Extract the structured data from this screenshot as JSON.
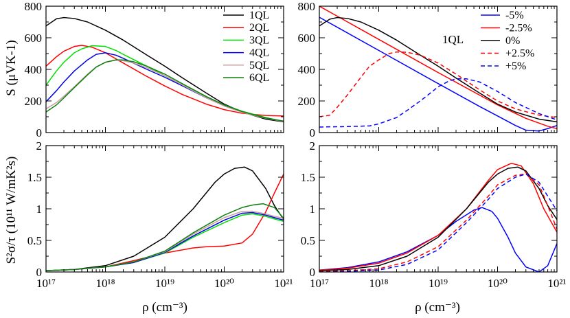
{
  "chart_data": [
    {
      "id": "tl",
      "type": "line",
      "xscale": "log",
      "xlim": [
        1e+17,
        1e+21
      ],
      "ylim": [
        0,
        800
      ],
      "yticks": [
        0,
        200,
        400,
        600,
        800
      ],
      "ytick_labels": [
        "0",
        "200",
        "400",
        "600",
        "800"
      ],
      "xticks": [
        1e+17,
        1e+18,
        1e+19,
        1e+20,
        1e+21
      ],
      "xtick_labels": [],
      "ylabel": "S (μVK-1)",
      "xlabel": "",
      "legend_position": "top-right",
      "series": [
        {
          "name": "1QL",
          "color": "#000000",
          "dash": "solid",
          "x": [
            1e+17,
            1.5e+17,
            2e+17,
            3e+17,
            5e+17,
            1e+18,
            2e+18,
            5e+18,
            1e+19,
            2e+19,
            5e+19,
            1e+20,
            2e+20,
            5e+20,
            1e+21
          ],
          "y": [
            675,
            720,
            728,
            722,
            700,
            648,
            585,
            490,
            420,
            345,
            250,
            180,
            130,
            85,
            68
          ]
        },
        {
          "name": "2QL",
          "color": "#ff0000",
          "dash": "solid",
          "x": [
            1e+17,
            1.5e+17,
            2e+17,
            3e+17,
            4e+17,
            6e+17,
            1e+18,
            2e+18,
            5e+18,
            1e+19,
            2e+19,
            5e+19,
            1e+20,
            2e+20,
            5e+20,
            1e+21
          ],
          "y": [
            420,
            480,
            515,
            545,
            552,
            540,
            505,
            440,
            355,
            295,
            240,
            180,
            145,
            122,
            108,
            105
          ]
        },
        {
          "name": "3QL",
          "color": "#00e000",
          "dash": "solid",
          "x": [
            1e+17,
            1.5e+17,
            2e+17,
            3e+17,
            4e+17,
            6e+17,
            1e+18,
            1.5e+18,
            2e+18,
            5e+18,
            1e+19,
            2e+19,
            5e+19,
            1e+20,
            2e+20,
            5e+20,
            1e+21
          ],
          "y": [
            300,
            390,
            445,
            505,
            530,
            550,
            545,
            520,
            495,
            420,
            360,
            300,
            225,
            175,
            135,
            95,
            70
          ]
        },
        {
          "name": "4QL",
          "color": "#0000e0",
          "dash": "solid",
          "x": [
            1e+17,
            1.5e+17,
            2e+17,
            3e+17,
            5e+17,
            7e+17,
            1e+18,
            1.5e+18,
            2e+18,
            5e+18,
            1e+19,
            2e+19,
            5e+19,
            1e+20,
            2e+20,
            5e+20,
            1e+21
          ],
          "y": [
            195,
            265,
            320,
            390,
            460,
            495,
            505,
            490,
            470,
            400,
            350,
            295,
            220,
            170,
            130,
            92,
            72
          ]
        },
        {
          "name": "5QL",
          "color": "#c8a0a0",
          "dash": "solid",
          "x": [
            1e+17,
            1.5e+17,
            2e+17,
            3e+17,
            5e+17,
            7e+17,
            1e+18,
            1.5e+18,
            2e+18,
            3e+18,
            5e+18,
            1e+19,
            2e+19,
            5e+19,
            1e+20,
            2e+20,
            5e+20,
            1e+21
          ],
          "y": [
            150,
            190,
            230,
            290,
            370,
            415,
            445,
            458,
            455,
            440,
            410,
            360,
            300,
            220,
            168,
            128,
            90,
            70
          ]
        },
        {
          "name": "6QL",
          "color": "#108010",
          "dash": "solid",
          "x": [
            1e+17,
            1.5e+17,
            2e+17,
            3e+17,
            5e+17,
            7e+17,
            1e+18,
            1.5e+18,
            2e+18,
            3e+18,
            5e+18,
            1e+19,
            2e+19,
            5e+19,
            1e+20,
            2e+20,
            5e+20,
            1e+21
          ],
          "y": [
            130,
            175,
            220,
            285,
            365,
            415,
            445,
            460,
            460,
            448,
            420,
            370,
            308,
            228,
            175,
            133,
            92,
            72
          ]
        }
      ]
    },
    {
      "id": "tr",
      "type": "line",
      "xscale": "log",
      "xlim": [
        1e+17,
        1e+21
      ],
      "ylim": [
        0,
        800
      ],
      "yticks": [
        0,
        200,
        400,
        600,
        800
      ],
      "ytick_labels": [
        "0",
        "200",
        "400",
        "600",
        "800"
      ],
      "xticks": [
        1e+17,
        1e+18,
        1e+19,
        1e+20,
        1e+21
      ],
      "xtick_labels": [],
      "ylabel": "",
      "xlabel": "",
      "annotation": "1QL",
      "legend_position": "top-right",
      "series": [
        {
          "name": "-5%",
          "color": "#0000ff",
          "dash": "solid",
          "x": [
            1e+17,
            1e+18,
            1e+19,
            5e+19,
            1e+20,
            2e+20,
            3e+20,
            5e+20,
            7e+20,
            1e+21
          ],
          "y": [
            730,
            520,
            310,
            165,
            105,
            45,
            15,
            10,
            25,
            45
          ]
        },
        {
          "name": "-2.5%",
          "color": "#ff0000",
          "dash": "solid",
          "x": [
            1e+17,
            1e+18,
            1e+19,
            1e+20,
            3e+20,
            7e+20,
            1e+21
          ],
          "y": [
            800,
            590,
            380,
            175,
            90,
            40,
            25
          ]
        },
        {
          "name": "0%",
          "color": "#000000",
          "dash": "solid",
          "x": [
            1e+17,
            1.5e+17,
            2e+17,
            3e+17,
            5e+17,
            1e+18,
            2e+18,
            5e+18,
            1e+19,
            2e+19,
            5e+19,
            1e+20,
            2e+20,
            5e+20,
            1e+21
          ],
          "y": [
            675,
            718,
            728,
            722,
            700,
            648,
            585,
            490,
            420,
            345,
            250,
            180,
            130,
            85,
            68
          ]
        },
        {
          "name": "+2.5%",
          "color": "#ff0000",
          "dash": "dashed",
          "x": [
            1e+17,
            1.5e+17,
            2e+17,
            3e+17,
            5e+17,
            7e+17,
            1e+18,
            1.5e+18,
            2e+18,
            3e+18,
            5e+18,
            1e+19,
            2e+19,
            5e+19,
            1e+20,
            2e+20,
            5e+20,
            1e+21
          ],
          "y": [
            100,
            110,
            160,
            240,
            350,
            420,
            460,
            500,
            510,
            508,
            490,
            440,
            370,
            270,
            200,
            150,
            110,
            95
          ]
        },
        {
          "name": "+5%",
          "color": "#0000ff",
          "dash": "dashed",
          "x": [
            1e+17,
            3e+17,
            7e+17,
            1e+18,
            2e+18,
            3e+18,
            5e+18,
            8e+18,
            1e+19,
            1.5e+19,
            2e+19,
            3e+19,
            5e+19,
            1e+20,
            2e+20,
            5e+20,
            1e+21
          ],
          "y": [
            35,
            38,
            42,
            55,
            95,
            140,
            200,
            260,
            290,
            325,
            340,
            340,
            320,
            260,
            190,
            120,
            80
          ]
        }
      ]
    },
    {
      "id": "bl",
      "type": "line",
      "xscale": "log",
      "xlim": [
        1e+17,
        1e+21
      ],
      "ylim": [
        0,
        2
      ],
      "yticks": [
        0,
        0.5,
        1,
        1.5,
        2
      ],
      "ytick_labels": [
        "0",
        "0.5",
        "1",
        "1.5",
        "2"
      ],
      "xticks": [
        1e+17,
        1e+18,
        1e+19,
        1e+20,
        1e+21
      ],
      "xtick_labels": [
        "10¹⁷",
        "10¹⁸",
        "10¹⁹",
        "10²⁰",
        "10²¹"
      ],
      "ylabel": "S²σ/τ (10¹¹ W/mK²s)",
      "xlabel": "ρ (cm⁻³)",
      "series": [
        {
          "name": "1QL",
          "color": "#000000",
          "dash": "solid",
          "x": [
            1e+17,
            3e+17,
            1e+18,
            3e+18,
            1e+19,
            3e+19,
            7e+19,
            1e+20,
            1.5e+20,
            2.2e+20,
            3e+20,
            5e+20,
            7e+20,
            1e+21
          ],
          "y": [
            0.02,
            0.04,
            0.1,
            0.25,
            0.55,
            1.0,
            1.42,
            1.55,
            1.64,
            1.66,
            1.6,
            1.32,
            1.05,
            0.83
          ]
        },
        {
          "name": "2QL",
          "color": "#ff0000",
          "dash": "solid",
          "x": [
            1e+17,
            3e+17,
            1e+18,
            3e+18,
            1e+19,
            3e+19,
            5e+19,
            1e+20,
            2e+20,
            3e+20,
            5e+20,
            7e+20,
            1e+21
          ],
          "y": [
            0.02,
            0.04,
            0.08,
            0.18,
            0.3,
            0.38,
            0.4,
            0.41,
            0.46,
            0.6,
            0.95,
            1.25,
            1.55
          ]
        },
        {
          "name": "3QL",
          "color": "#00e000",
          "dash": "solid",
          "x": [
            1e+17,
            3e+17,
            1e+18,
            3e+18,
            1e+19,
            3e+19,
            1e+20,
            2e+20,
            3e+20,
            5e+20,
            7e+20,
            1e+21
          ],
          "y": [
            0.02,
            0.04,
            0.08,
            0.15,
            0.3,
            0.55,
            0.78,
            0.9,
            0.92,
            0.88,
            0.84,
            0.8
          ]
        },
        {
          "name": "4QL",
          "color": "#0000e0",
          "dash": "solid",
          "x": [
            1e+17,
            3e+17,
            1e+18,
            3e+18,
            1e+19,
            3e+19,
            1e+20,
            2e+20,
            3e+20,
            5e+20,
            7e+20,
            1e+21
          ],
          "y": [
            0.02,
            0.04,
            0.08,
            0.15,
            0.31,
            0.57,
            0.82,
            0.93,
            0.94,
            0.9,
            0.86,
            0.82
          ]
        },
        {
          "name": "5QL",
          "color": "#c8a0a0",
          "dash": "solid",
          "x": [
            1e+17,
            3e+17,
            1e+18,
            3e+18,
            1e+19,
            3e+19,
            1e+20,
            2e+20,
            3e+20,
            5e+20,
            7e+20,
            1e+21
          ],
          "y": [
            0.02,
            0.04,
            0.08,
            0.16,
            0.32,
            0.6,
            0.86,
            0.96,
            0.96,
            0.92,
            0.88,
            0.85
          ]
        },
        {
          "name": "6QL",
          "color": "#108010",
          "dash": "solid",
          "x": [
            1e+17,
            3e+17,
            1e+18,
            3e+18,
            1e+19,
            3e+19,
            1e+20,
            2e+20,
            3e+20,
            4.5e+20,
            7e+20,
            1e+21
          ],
          "y": [
            0.02,
            0.04,
            0.08,
            0.16,
            0.33,
            0.62,
            0.9,
            1.02,
            1.06,
            1.08,
            1.02,
            0.85
          ]
        }
      ]
    },
    {
      "id": "br",
      "type": "line",
      "xscale": "log",
      "xlim": [
        1e+17,
        1e+21
      ],
      "ylim": [
        0,
        2
      ],
      "yticks": [
        0,
        0.5,
        1,
        1.5,
        2
      ],
      "ytick_labels": [
        "0",
        "0.5",
        "1",
        "1.5",
        "2"
      ],
      "xticks": [
        1e+17,
        1e+18,
        1e+19,
        1e+20,
        1e+21
      ],
      "xtick_labels": [
        "10¹⁷",
        "10¹⁸",
        "10¹⁹",
        "10²⁰",
        "10²¹"
      ],
      "ylabel": "",
      "xlabel": "ρ (cm⁻³)",
      "series": [
        {
          "name": "-5%",
          "color": "#0000ff",
          "dash": "solid",
          "x": [
            1e+17,
            3e+17,
            1e+18,
            3e+18,
            1e+19,
            2e+19,
            4e+19,
            5.5e+19,
            8e+19,
            1e+20,
            1.5e+20,
            2e+20,
            3e+20,
            5e+20,
            7e+20,
            1e+21
          ],
          "y": [
            0.03,
            0.07,
            0.16,
            0.32,
            0.58,
            0.8,
            0.98,
            1.02,
            0.96,
            0.85,
            0.55,
            0.3,
            0.08,
            0.0,
            0.1,
            0.45
          ]
        },
        {
          "name": "-2.5%",
          "color": "#ff0000",
          "dash": "solid",
          "x": [
            1e+17,
            3e+17,
            1e+18,
            3e+18,
            1e+19,
            3e+19,
            7e+19,
            1e+20,
            1.7e+20,
            2.5e+20,
            4e+20,
            6e+20,
            1e+21
          ],
          "y": [
            0.03,
            0.06,
            0.14,
            0.3,
            0.58,
            1.0,
            1.45,
            1.62,
            1.72,
            1.68,
            1.4,
            1.0,
            0.63
          ]
        },
        {
          "name": "0%",
          "color": "#000000",
          "dash": "solid",
          "x": [
            1e+17,
            3e+17,
            1e+18,
            3e+18,
            1e+19,
            3e+19,
            7e+19,
            1e+20,
            1.5e+20,
            2.2e+20,
            3e+20,
            5e+20,
            7e+20,
            1e+21
          ],
          "y": [
            0.02,
            0.04,
            0.1,
            0.25,
            0.55,
            1.0,
            1.42,
            1.55,
            1.64,
            1.66,
            1.6,
            1.32,
            1.05,
            0.83
          ]
        },
        {
          "name": "+2.5%",
          "color": "#ff0000",
          "dash": "dashed",
          "x": [
            1e+17,
            3e+17,
            1e+18,
            3e+18,
            1e+19,
            3e+19,
            7e+19,
            1e+20,
            2e+20,
            3e+20,
            5e+20,
            7e+20,
            1e+21
          ],
          "y": [
            0.01,
            0.02,
            0.05,
            0.16,
            0.4,
            0.82,
            1.2,
            1.38,
            1.53,
            1.55,
            1.38,
            1.05,
            0.68
          ]
        },
        {
          "name": "+5%",
          "color": "#0000ff",
          "dash": "dashed",
          "x": [
            1e+17,
            3e+17,
            1e+18,
            3e+18,
            1e+19,
            3e+19,
            7e+19,
            1e+20,
            2e+20,
            3e+20,
            5e+20,
            7e+20,
            1e+21
          ],
          "y": [
            0.0,
            0.01,
            0.03,
            0.12,
            0.35,
            0.78,
            1.15,
            1.32,
            1.5,
            1.55,
            1.42,
            1.2,
            0.97
          ]
        }
      ]
    }
  ]
}
